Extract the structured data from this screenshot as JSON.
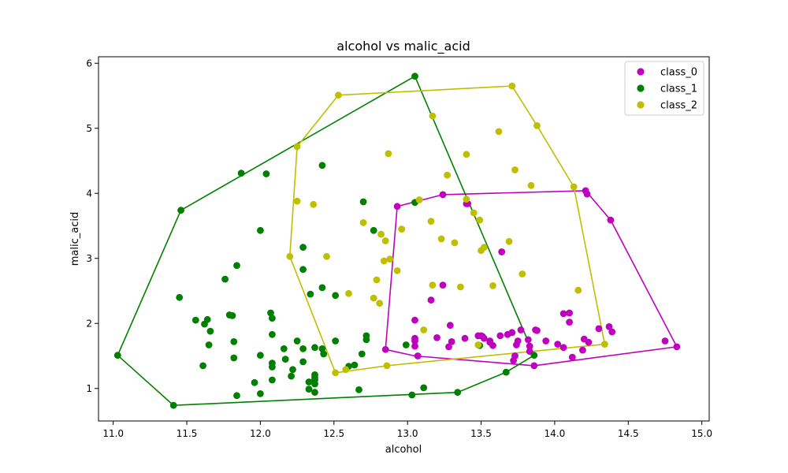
{
  "chart_data": {
    "type": "scatter",
    "title": "alcohol vs malic_acid",
    "xlabel": "alcohol",
    "ylabel": "malic_acid",
    "xlim": [
      10.9,
      15.05
    ],
    "ylim": [
      0.5,
      6.1
    ],
    "xticks": [
      "11.0",
      "11.5",
      "12.0",
      "12.5",
      "13.0",
      "13.5",
      "14.0",
      "14.5",
      "15.0"
    ],
    "yticks": [
      "1",
      "2",
      "3",
      "4",
      "5",
      "6"
    ],
    "grid": false,
    "legend_position": "top-right",
    "series": [
      {
        "name": "class_0",
        "color": "#bf00bf",
        "hull": [
          [
            12.85,
            1.6
          ],
          [
            12.93,
            3.8
          ],
          [
            13.24,
            3.98
          ],
          [
            14.21,
            4.04
          ],
          [
            14.38,
            3.59
          ],
          [
            14.83,
            1.64
          ],
          [
            13.86,
            1.35
          ],
          [
            13.05,
            1.5
          ],
          [
            12.85,
            1.6
          ]
        ],
        "points": [
          [
            12.85,
            1.6
          ],
          [
            12.93,
            3.8
          ],
          [
            13.24,
            3.98
          ],
          [
            13.4,
            3.84
          ],
          [
            14.21,
            4.04
          ],
          [
            14.22,
            3.99
          ],
          [
            14.38,
            3.59
          ],
          [
            14.83,
            1.64
          ],
          [
            14.75,
            1.73
          ],
          [
            14.37,
            1.95
          ],
          [
            14.39,
            1.87
          ],
          [
            14.3,
            1.92
          ],
          [
            14.23,
            1.71
          ],
          [
            14.2,
            1.76
          ],
          [
            14.19,
            1.59
          ],
          [
            14.12,
            1.48
          ],
          [
            14.1,
            2.16
          ],
          [
            14.1,
            2.02
          ],
          [
            14.06,
            2.15
          ],
          [
            14.06,
            1.63
          ],
          [
            14.02,
            1.68
          ],
          [
            13.94,
            1.73
          ],
          [
            13.88,
            1.89
          ],
          [
            13.87,
            1.9
          ],
          [
            13.86,
            1.35
          ],
          [
            13.83,
            1.65
          ],
          [
            13.83,
            1.57
          ],
          [
            13.82,
            1.75
          ],
          [
            13.77,
            1.9
          ],
          [
            13.75,
            1.73
          ],
          [
            13.74,
            1.67
          ],
          [
            13.73,
            1.5
          ],
          [
            13.72,
            1.43
          ],
          [
            13.71,
            1.86
          ],
          [
            13.68,
            1.83
          ],
          [
            13.64,
            3.1
          ],
          [
            13.63,
            1.81
          ],
          [
            13.58,
            1.66
          ],
          [
            13.56,
            1.73
          ],
          [
            13.56,
            1.71
          ],
          [
            13.52,
            1.77
          ],
          [
            13.51,
            1.8
          ],
          [
            13.5,
            1.81
          ],
          [
            13.48,
            1.81
          ],
          [
            13.41,
            3.84
          ],
          [
            13.39,
            1.77
          ],
          [
            13.3,
            1.72
          ],
          [
            13.29,
            1.97
          ],
          [
            13.28,
            1.64
          ],
          [
            13.24,
            2.59
          ],
          [
            13.2,
            1.78
          ],
          [
            13.16,
            2.36
          ],
          [
            13.07,
            1.5
          ],
          [
            13.05,
            2.05
          ],
          [
            13.05,
            1.77
          ],
          [
            13.05,
            1.73
          ],
          [
            13.05,
            1.65
          ]
        ]
      },
      {
        "name": "class_1",
        "color": "#008000",
        "hull": [
          [
            11.03,
            1.51
          ],
          [
            11.41,
            0.74
          ],
          [
            13.34,
            0.94
          ],
          [
            13.67,
            1.25
          ],
          [
            13.86,
            1.51
          ],
          [
            13.05,
            5.8
          ],
          [
            11.46,
            3.74
          ],
          [
            11.03,
            1.51
          ]
        ],
        "points": [
          [
            11.03,
            1.51
          ],
          [
            11.41,
            0.74
          ],
          [
            11.45,
            2.4
          ],
          [
            11.46,
            3.74
          ],
          [
            11.56,
            2.05
          ],
          [
            11.61,
            1.35
          ],
          [
            11.62,
            1.99
          ],
          [
            11.64,
            2.06
          ],
          [
            11.65,
            1.67
          ],
          [
            11.66,
            1.88
          ],
          [
            11.76,
            2.68
          ],
          [
            11.79,
            2.13
          ],
          [
            11.81,
            2.12
          ],
          [
            11.82,
            1.47
          ],
          [
            11.82,
            1.72
          ],
          [
            11.84,
            2.89
          ],
          [
            11.84,
            0.89
          ],
          [
            11.87,
            4.31
          ],
          [
            11.96,
            1.09
          ],
          [
            12.0,
            3.43
          ],
          [
            12.0,
            0.92
          ],
          [
            12.0,
            1.51
          ],
          [
            12.04,
            4.3
          ],
          [
            12.07,
            2.16
          ],
          [
            12.08,
            1.13
          ],
          [
            12.08,
            1.33
          ],
          [
            12.08,
            1.39
          ],
          [
            12.08,
            2.08
          ],
          [
            12.08,
            1.83
          ],
          [
            12.16,
            1.61
          ],
          [
            12.17,
            1.45
          ],
          [
            12.21,
            1.19
          ],
          [
            12.22,
            1.29
          ],
          [
            12.25,
            1.73
          ],
          [
            12.29,
            3.17
          ],
          [
            12.29,
            2.83
          ],
          [
            12.29,
            1.61
          ],
          [
            12.29,
            1.41
          ],
          [
            12.33,
            1.1
          ],
          [
            12.33,
            0.99
          ],
          [
            12.34,
            2.45
          ],
          [
            12.37,
            1.63
          ],
          [
            12.37,
            1.07
          ],
          [
            12.37,
            1.13
          ],
          [
            12.37,
            1.17
          ],
          [
            12.37,
            1.21
          ],
          [
            12.37,
            0.94
          ],
          [
            12.42,
            2.55
          ],
          [
            12.42,
            4.43
          ],
          [
            12.42,
            1.61
          ],
          [
            12.43,
            1.53
          ],
          [
            12.51,
            1.73
          ],
          [
            12.51,
            2.43
          ],
          [
            12.6,
            1.34
          ],
          [
            12.64,
            1.36
          ],
          [
            12.67,
            0.98
          ],
          [
            12.69,
            1.53
          ],
          [
            12.7,
            3.87
          ],
          [
            12.72,
            1.75
          ],
          [
            12.72,
            1.81
          ],
          [
            12.77,
            3.43
          ],
          [
            12.99,
            1.67
          ],
          [
            13.03,
            0.9
          ],
          [
            13.05,
            3.86
          ],
          [
            13.05,
            5.8
          ],
          [
            13.11,
            1.01
          ],
          [
            13.34,
            0.94
          ],
          [
            13.49,
            1.66
          ],
          [
            13.67,
            1.25
          ],
          [
            13.86,
            1.51
          ]
        ]
      },
      {
        "name": "class_2",
        "color": "#bfbf00",
        "hull": [
          [
            12.51,
            1.24
          ],
          [
            12.86,
            1.35
          ],
          [
            14.34,
            1.68
          ],
          [
            14.13,
            4.1
          ],
          [
            13.88,
            5.04
          ],
          [
            13.71,
            5.65
          ],
          [
            12.53,
            5.51
          ],
          [
            12.25,
            4.72
          ],
          [
            12.2,
            3.03
          ],
          [
            12.51,
            1.24
          ]
        ],
        "points": [
          [
            12.2,
            3.03
          ],
          [
            12.25,
            4.72
          ],
          [
            12.25,
            3.88
          ],
          [
            12.36,
            3.83
          ],
          [
            12.45,
            3.03
          ],
          [
            12.51,
            1.24
          ],
          [
            12.53,
            5.51
          ],
          [
            12.58,
            1.29
          ],
          [
            12.6,
            2.46
          ],
          [
            12.7,
            3.55
          ],
          [
            12.77,
            2.39
          ],
          [
            12.79,
            2.67
          ],
          [
            12.81,
            2.31
          ],
          [
            12.82,
            3.37
          ],
          [
            12.84,
            2.96
          ],
          [
            12.85,
            3.27
          ],
          [
            12.86,
            1.35
          ],
          [
            12.87,
            4.61
          ],
          [
            12.88,
            2.99
          ],
          [
            12.93,
            2.81
          ],
          [
            12.96,
            3.45
          ],
          [
            13.08,
            3.9
          ],
          [
            13.11,
            1.9
          ],
          [
            13.16,
            3.57
          ],
          [
            13.17,
            5.19
          ],
          [
            13.17,
            2.59
          ],
          [
            13.23,
            3.3
          ],
          [
            13.27,
            4.28
          ],
          [
            13.32,
            3.24
          ],
          [
            13.36,
            2.56
          ],
          [
            13.4,
            4.6
          ],
          [
            13.4,
            3.91
          ],
          [
            13.45,
            3.7
          ],
          [
            13.48,
            1.67
          ],
          [
            13.49,
            3.59
          ],
          [
            13.5,
            3.12
          ],
          [
            13.52,
            3.17
          ],
          [
            13.58,
            2.58
          ],
          [
            13.62,
            4.95
          ],
          [
            13.69,
            3.26
          ],
          [
            13.71,
            5.65
          ],
          [
            13.73,
            4.36
          ],
          [
            13.78,
            2.76
          ],
          [
            13.84,
            4.12
          ],
          [
            13.88,
            5.04
          ],
          [
            14.13,
            4.1
          ],
          [
            14.16,
            2.51
          ],
          [
            14.34,
            1.68
          ]
        ]
      }
    ]
  }
}
